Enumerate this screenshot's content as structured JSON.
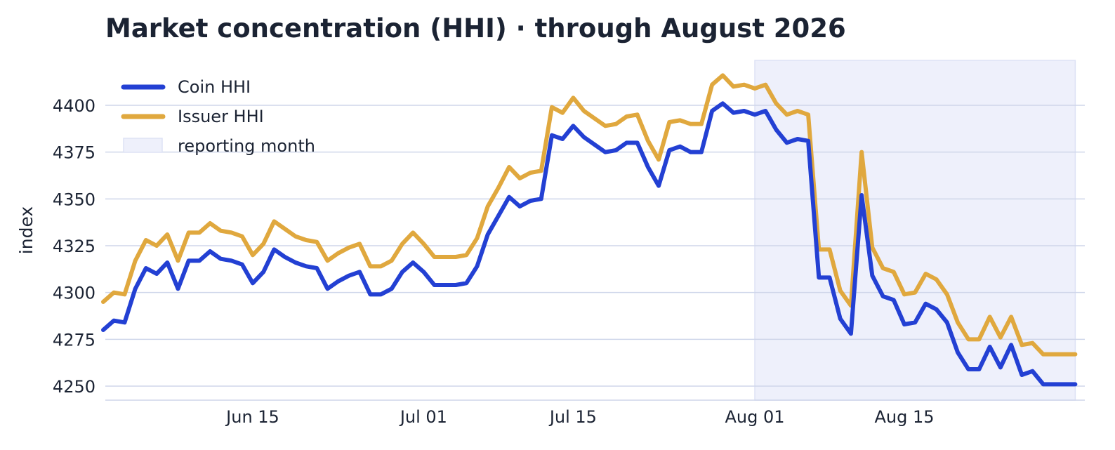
{
  "chart_data": {
    "type": "line",
    "title": "Market concentration (HHI) · through August 2026",
    "xlabel": "",
    "ylabel": "index",
    "ylim": [
      4246.5,
      4419
    ],
    "yticks": [
      4250,
      4275,
      4300,
      4325,
      4350,
      4375,
      4400
    ],
    "ytick_labels": [
      "4250",
      "4275",
      "4300",
      "4325",
      "4350",
      "4375",
      "4400"
    ],
    "xticks": [
      {
        "x": "2026-06-15",
        "label": "Jun 15"
      },
      {
        "x": "2026-07-01",
        "label": "Jul 01"
      },
      {
        "x": "2026-07-15",
        "label": "Jul 15"
      },
      {
        "x": "2026-08-01",
        "label": "Aug 01"
      },
      {
        "x": "2026-08-15",
        "label": "Aug 15"
      }
    ],
    "x": [
      "2026-06-01",
      "2026-06-02",
      "2026-06-03",
      "2026-06-04",
      "2026-06-05",
      "2026-06-06",
      "2026-06-07",
      "2026-06-08",
      "2026-06-09",
      "2026-06-10",
      "2026-06-11",
      "2026-06-12",
      "2026-06-13",
      "2026-06-14",
      "2026-06-15",
      "2026-06-16",
      "2026-06-17",
      "2026-06-18",
      "2026-06-19",
      "2026-06-20",
      "2026-06-21",
      "2026-06-22",
      "2026-06-23",
      "2026-06-24",
      "2026-06-25",
      "2026-06-26",
      "2026-06-27",
      "2026-06-28",
      "2026-06-29",
      "2026-06-30",
      "2026-07-01",
      "2026-07-02",
      "2026-07-03",
      "2026-07-04",
      "2026-07-05",
      "2026-07-06",
      "2026-07-07",
      "2026-07-08",
      "2026-07-09",
      "2026-07-10",
      "2026-07-11",
      "2026-07-12",
      "2026-07-13",
      "2026-07-14",
      "2026-07-15",
      "2026-07-16",
      "2026-07-17",
      "2026-07-18",
      "2026-07-19",
      "2026-07-20",
      "2026-07-21",
      "2026-07-22",
      "2026-07-23",
      "2026-07-24",
      "2026-07-25",
      "2026-07-26",
      "2026-07-27",
      "2026-07-28",
      "2026-07-29",
      "2026-07-30",
      "2026-07-31",
      "2026-08-01",
      "2026-08-02",
      "2026-08-03",
      "2026-08-04",
      "2026-08-05",
      "2026-08-06",
      "2026-08-07",
      "2026-08-08",
      "2026-08-09",
      "2026-08-10",
      "2026-08-11",
      "2026-08-12",
      "2026-08-13",
      "2026-08-14",
      "2026-08-15",
      "2026-08-16",
      "2026-08-17",
      "2026-08-18",
      "2026-08-19",
      "2026-08-20",
      "2026-08-21",
      "2026-08-22",
      "2026-08-23",
      "2026-08-24",
      "2026-08-25",
      "2026-08-26",
      "2026-08-27",
      "2026-08-28",
      "2026-08-29",
      "2026-08-30",
      "2026-08-31"
    ],
    "series": [
      {
        "name": "Coin HHI",
        "color": "#2340d3",
        "values": [
          4280,
          4285,
          4284,
          4302,
          4313,
          4310,
          4316,
          4302,
          4317,
          4317,
          4322,
          4318,
          4317,
          4315,
          4305,
          4311,
          4323,
          4319,
          4316,
          4314,
          4313,
          4302,
          4306,
          4309,
          4311,
          4299,
          4299,
          4302,
          4311,
          4316,
          4311,
          4304,
          4304,
          4304,
          4305,
          4314,
          4331,
          4341,
          4351,
          4346,
          4349,
          4350,
          4384,
          4382,
          4389,
          4383,
          4379,
          4375,
          4376,
          4380,
          4380,
          4367,
          4357,
          4376,
          4378,
          4375,
          4375,
          4397,
          4401,
          4396,
          4397,
          4395,
          4397,
          4387,
          4380,
          4382,
          4381,
          4308,
          4308,
          4286,
          4278,
          4352,
          4309,
          4298,
          4296,
          4283,
          4284,
          4294,
          4291,
          4284,
          4268,
          4259,
          4259,
          4271,
          4260,
          4272,
          4256,
          4258,
          4251,
          4251,
          4251,
          4251
        ]
      },
      {
        "name": "Issuer HHI",
        "color": "#e0a83e",
        "values": [
          4295,
          4300,
          4299,
          4317,
          4328,
          4325,
          4331,
          4317,
          4332,
          4332,
          4337,
          4333,
          4332,
          4330,
          4320,
          4326,
          4338,
          4334,
          4330,
          4328,
          4327,
          4317,
          4321,
          4324,
          4326,
          4314,
          4314,
          4317,
          4326,
          4332,
          4326,
          4319,
          4319,
          4319,
          4320,
          4329,
          4346,
          4356,
          4367,
          4361,
          4364,
          4365,
          4399,
          4396,
          4404,
          4397,
          4393,
          4389,
          4390,
          4394,
          4395,
          4381,
          4371,
          4391,
          4392,
          4390,
          4390,
          4411,
          4416,
          4410,
          4411,
          4409,
          4411,
          4401,
          4395,
          4397,
          4395,
          4323,
          4323,
          4301,
          4293,
          4375,
          4324,
          4313,
          4311,
          4299,
          4300,
          4310,
          4307,
          4299,
          4284,
          4275,
          4275,
          4287,
          4276,
          4287,
          4272,
          4273,
          4267,
          4267,
          4267,
          4267
        ]
      }
    ],
    "shaded_region": {
      "label": "reporting month",
      "x_start": "2026-08-01",
      "x_end": "2026-08-31",
      "color": "#eef0fb"
    },
    "grid": "horizontal",
    "legend_position": "top-left",
    "gridline_color": "#cfd6ea"
  }
}
